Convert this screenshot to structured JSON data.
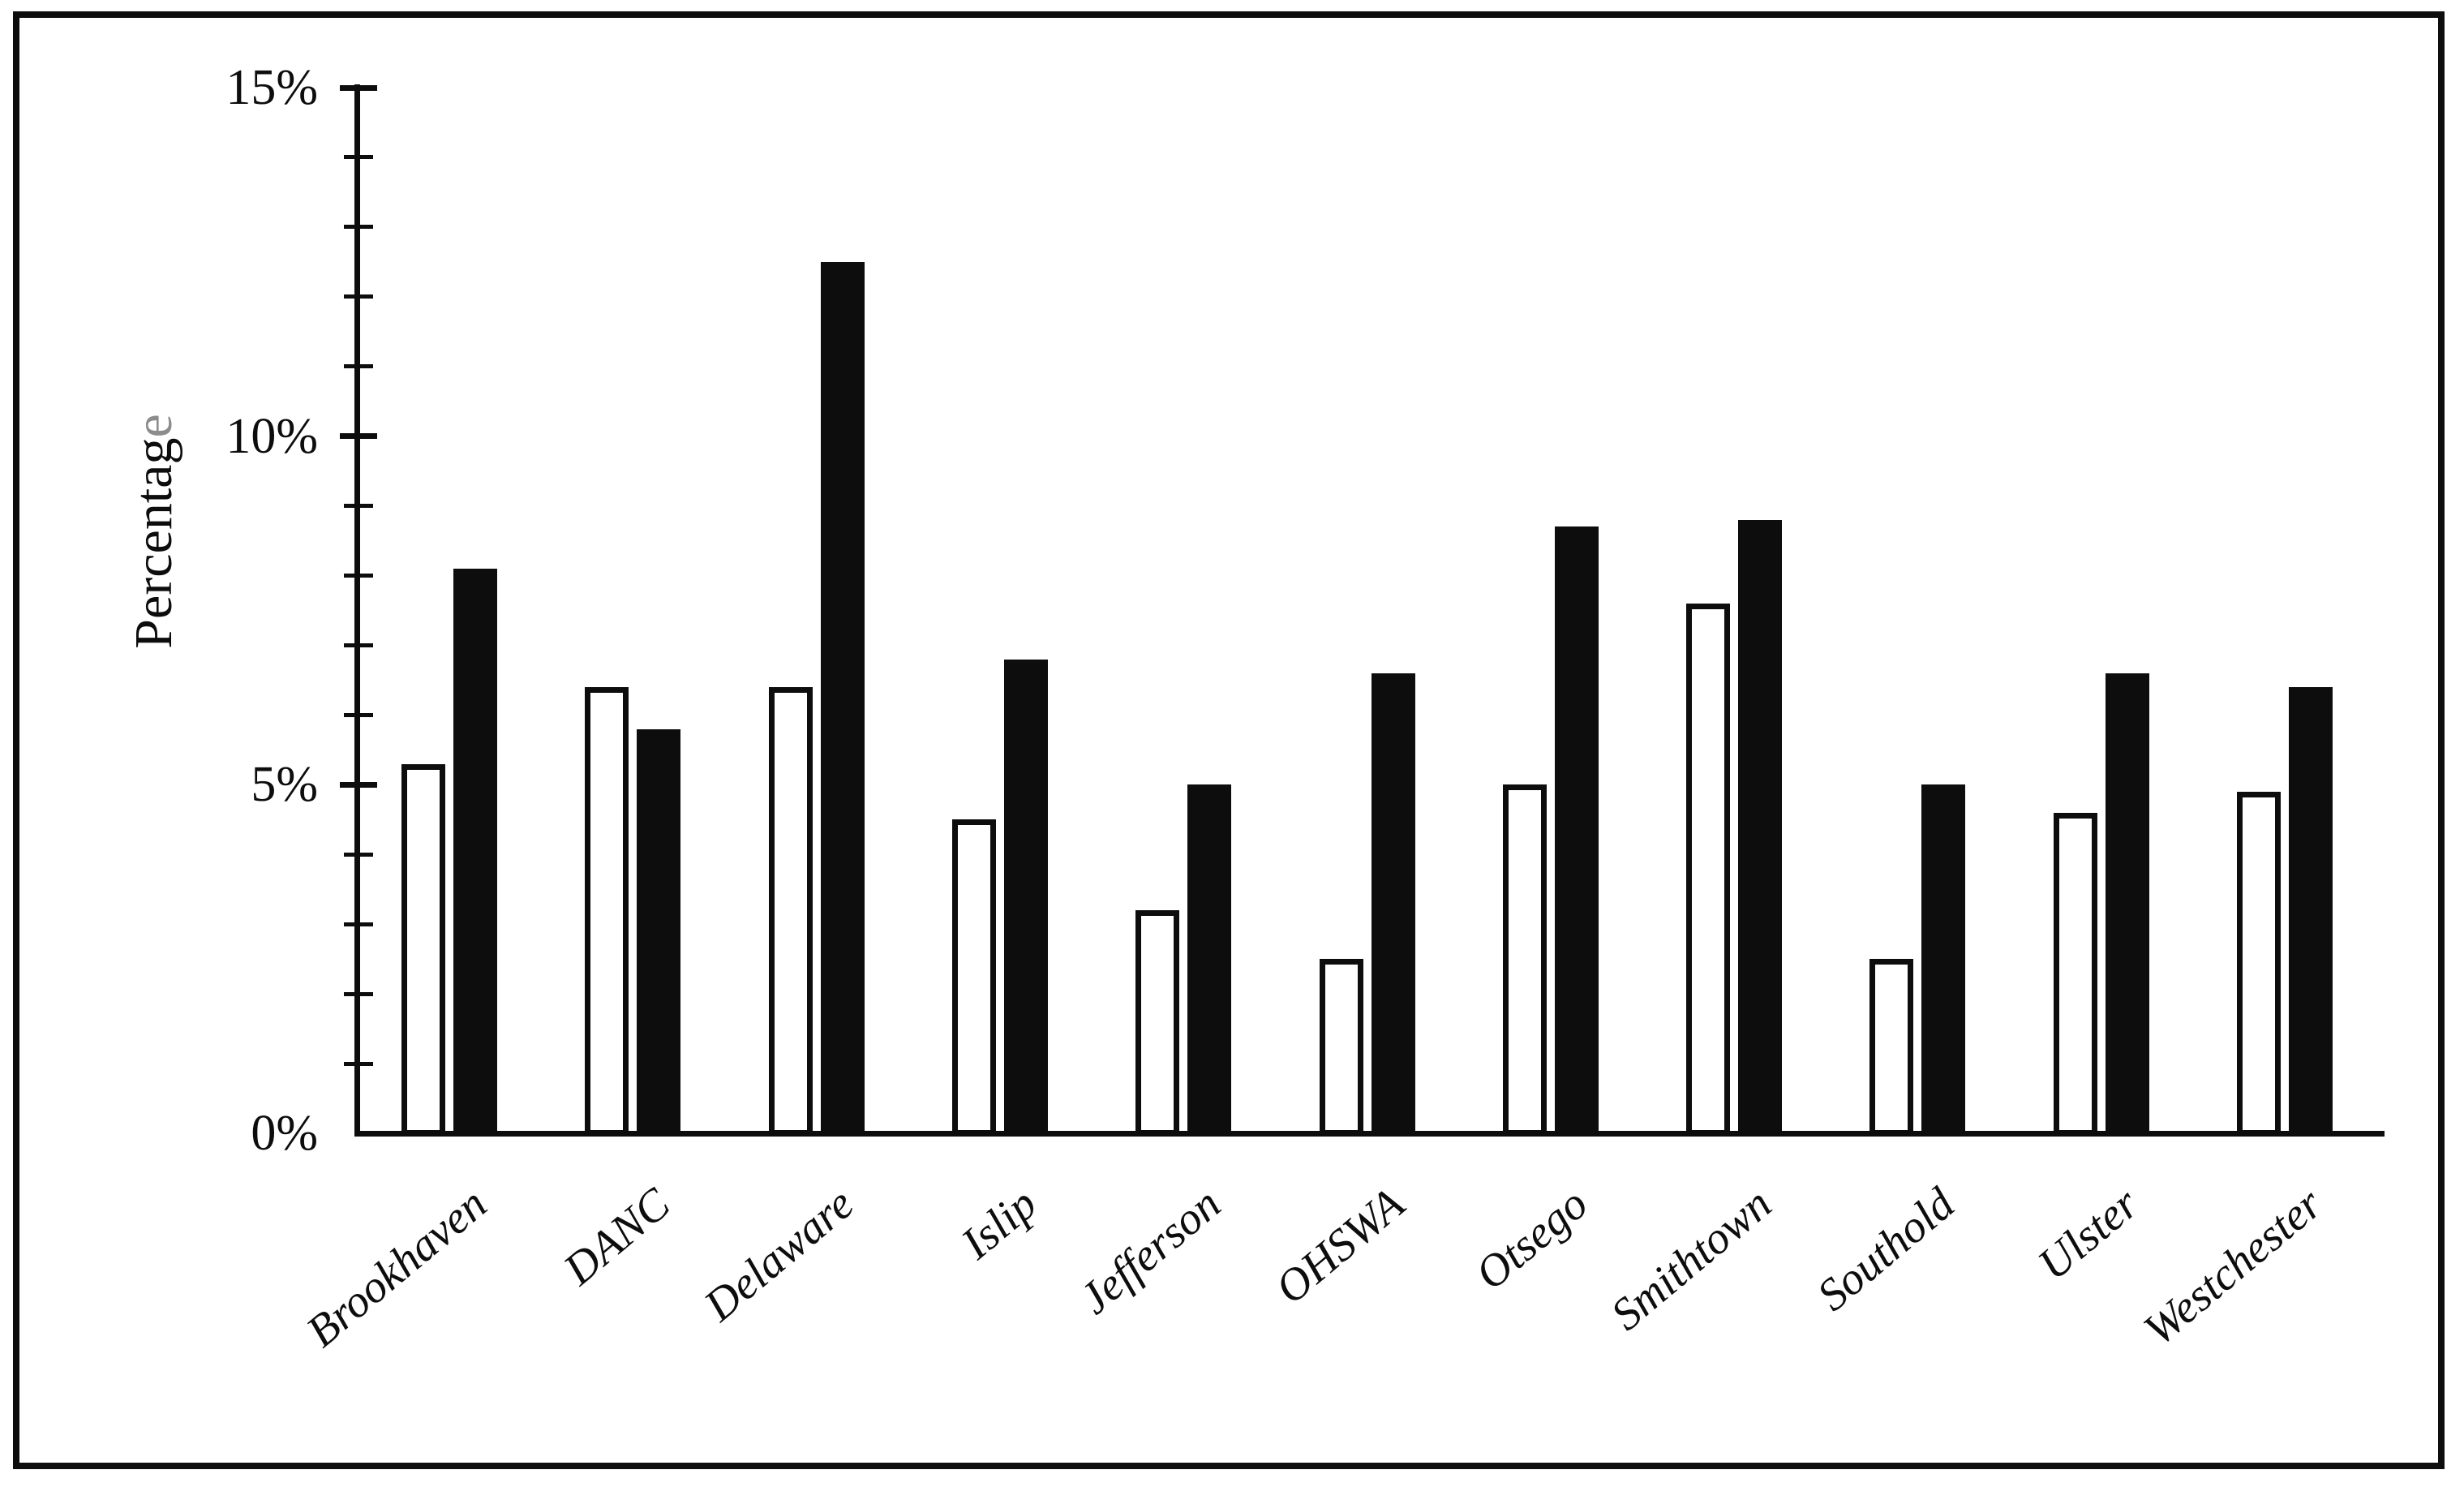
{
  "background": "#ffffff",
  "frame_color": "#0d0d0d",
  "chart_data": {
    "type": "bar",
    "title": "",
    "ylabel": "Percentage",
    "ylabel_last_letter_color": "#8c8c8c",
    "categories": [
      "Brookhaven",
      "DANC",
      "Delaware",
      "Islip",
      "Jefferson",
      "OHSWA",
      "Otsego",
      "Smithtown",
      "Southold",
      "Ulster",
      "Westchester"
    ],
    "series": [
      {
        "name": "white-bars",
        "fill": "#ffffff",
        "outline": "#0d0d0d",
        "values": [
          5.3,
          6.4,
          6.4,
          4.5,
          3.2,
          2.5,
          5.0,
          7.6,
          2.5,
          4.6,
          4.9
        ]
      },
      {
        "name": "black-bars",
        "fill": "#0d0d0d",
        "outline": "#0d0d0d",
        "values": [
          8.1,
          5.8,
          12.5,
          6.8,
          5.0,
          6.6,
          8.7,
          8.8,
          5.0,
          6.6,
          6.4
        ]
      }
    ],
    "y_axis": {
      "ylim": [
        0,
        15
      ],
      "major_tick_interval": 5,
      "minor_tick_interval": 1,
      "tick_labels": [
        "0%",
        "5%",
        "10%",
        "15%"
      ]
    },
    "x_tick_label_rotation_deg": 40,
    "legend": "none",
    "grid": "off"
  }
}
